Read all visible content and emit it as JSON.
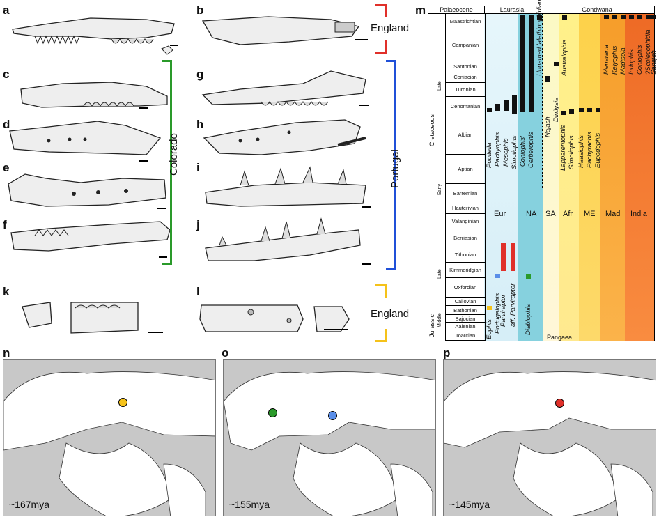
{
  "panels": {
    "a": "a",
    "b": "b",
    "c": "c",
    "d": "d",
    "e": "e",
    "f": "f",
    "g": "g",
    "h": "h",
    "i": "i",
    "j": "j",
    "k": "k",
    "l": "l",
    "m": "m",
    "n": "n",
    "o": "o",
    "p": "p"
  },
  "locations": {
    "england_top": "England",
    "colorado": "Colorado",
    "portugal": "Portugal",
    "england_bottom": "England"
  },
  "colors": {
    "england_top": "#e0302a",
    "colorado": "#2a9a2a",
    "portugal": "#2050d8",
    "england_bottom": "#f5c21a"
  },
  "chart": {
    "header_left": "Palaeocene",
    "header_mid": "Laurasia",
    "header_right": "Gondwana",
    "periods": [
      "Cretaceous",
      "Jurassic"
    ],
    "epochs": [
      "Late",
      "Early",
      "Late",
      "Middle"
    ],
    "stages": [
      "Maastrichtian",
      "Campanian",
      "Santonian",
      "Coniacian",
      "Turonian",
      "Cenomanian",
      "Albian",
      "Aptian",
      "Barremian",
      "Hauterivian",
      "Valanginian",
      "Berriasian",
      "Tithonian",
      "Kimmeridgian",
      "Oxfordian",
      "Callovian",
      "Bathonian",
      "Bajocian",
      "Aalenian",
      "Toarcian"
    ],
    "regions": [
      "Eur",
      "NA",
      "SA",
      "Afr",
      "ME",
      "Mad",
      "India"
    ],
    "pangaea": "Pangaea",
    "taxa": [
      "Eophis",
      "Portugalophis",
      "Parviraptor",
      "aff. Parviraptor",
      "Diablophis",
      "Pouitella",
      "Pachyophis",
      "Mesophis",
      "Simoliophis",
      "'Coniophis'",
      "Cerberophis",
      "Unnamed 'alethinophidian'",
      "Najash",
      "Dinilysia",
      "Australophis",
      "Lapparentophis",
      "Simoliophis",
      "Haasiophis",
      "Pachyrachis",
      "Eupodophis",
      "Menarana",
      "Kelyophis",
      "Madtsoia",
      "Indophis",
      "Coniophis",
      "?Scolecophidia",
      "Sanajeh"
    ]
  },
  "maps": [
    {
      "age": "~167mya",
      "dot": "#f5c21a"
    },
    {
      "age": "~155mya",
      "dot": "#2a9a2a",
      "dot2": "#5a8ee8"
    },
    {
      "age": "~145mya",
      "dot": "#e0302a"
    }
  ]
}
